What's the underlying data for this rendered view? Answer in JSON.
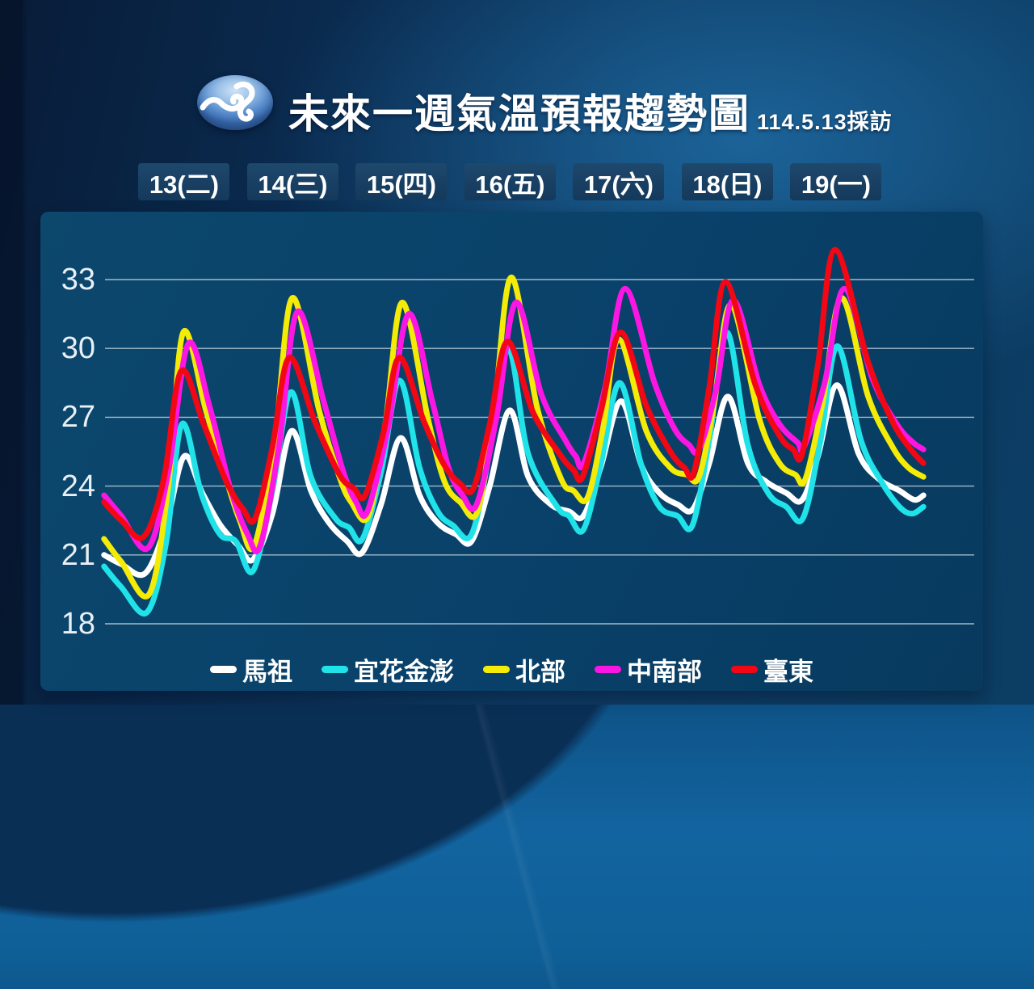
{
  "header": {
    "title": "未來一週氣溫預報趨勢圖",
    "subtitle": "114.5.13採訪",
    "logo": "cwa-wave-logo"
  },
  "chart_data": {
    "type": "line",
    "title": "未來一週氣溫預報趨勢圖",
    "x_axis": {
      "days": [
        "13(二)",
        "14(三)",
        "15(四)",
        "16(五)",
        "17(六)",
        "18(日)",
        "19(一)"
      ],
      "x_unit": "hours from 00:00 of day 13"
    },
    "y_axis": {
      "ticks": [
        33,
        30,
        27,
        24,
        21,
        18
      ],
      "unit": "°C",
      "range": [
        15,
        36
      ]
    },
    "grid": true,
    "legend_position": "bottom",
    "series": [
      {
        "name": "馬祖",
        "key": "matsu",
        "color": "#ffffff",
        "points": [
          [
            -3.7,
            21.0
          ],
          [
            0.1,
            20.6
          ],
          [
            5.4,
            20.2
          ],
          [
            10,
            22.3
          ],
          [
            14,
            25.3
          ],
          [
            18,
            23.7
          ],
          [
            22,
            22.3
          ],
          [
            26,
            21.4
          ],
          [
            29.2,
            20.8
          ],
          [
            33.5,
            22.8
          ],
          [
            37.7,
            26.4
          ],
          [
            42,
            23.8
          ],
          [
            46,
            22.4
          ],
          [
            50,
            21.6
          ],
          [
            53.3,
            21.1
          ],
          [
            57.5,
            23.2
          ],
          [
            61.8,
            26.1
          ],
          [
            66,
            23.6
          ],
          [
            70,
            22.4
          ],
          [
            74,
            21.9
          ],
          [
            77.5,
            21.6
          ],
          [
            81.5,
            24.0
          ],
          [
            85.9,
            27.3
          ],
          [
            90,
            24.4
          ],
          [
            95,
            23.2
          ],
          [
            99,
            22.9
          ],
          [
            102.2,
            22.7
          ],
          [
            106,
            24.8
          ],
          [
            110.5,
            27.7
          ],
          [
            115,
            24.9
          ],
          [
            119,
            23.7
          ],
          [
            123,
            23.2
          ],
          [
            126.4,
            23.0
          ],
          [
            130,
            25.0
          ],
          [
            134.1,
            27.9
          ],
          [
            138.5,
            25.0
          ],
          [
            142.5,
            24.2
          ],
          [
            147,
            23.7
          ],
          [
            150.5,
            23.4
          ],
          [
            154,
            25.3
          ],
          [
            158.2,
            28.4
          ],
          [
            163,
            25.4
          ],
          [
            167.5,
            24.3
          ],
          [
            172,
            23.8
          ],
          [
            175.3,
            23.4
          ],
          [
            177.3,
            23.6
          ]
        ]
      },
      {
        "name": "宜花金澎",
        "key": "yilan-hualien-kinmen-penghu",
        "color": "#1fe3e9",
        "points": [
          [
            -3.7,
            20.5
          ],
          [
            0.1,
            19.6
          ],
          [
            5.8,
            18.5
          ],
          [
            10,
            21.5
          ],
          [
            13.5,
            26.7
          ],
          [
            17.9,
            23.6
          ],
          [
            21.9,
            21.9
          ],
          [
            25.4,
            21.6
          ],
          [
            29.2,
            20.3
          ],
          [
            33.5,
            23.8
          ],
          [
            37.6,
            28.1
          ],
          [
            42,
            24.4
          ],
          [
            47.4,
            22.6
          ],
          [
            50.4,
            22.2
          ],
          [
            53.4,
            21.7
          ],
          [
            57.5,
            24.6
          ],
          [
            61.6,
            28.6
          ],
          [
            66,
            24.8
          ],
          [
            70,
            22.9
          ],
          [
            73.3,
            22.3
          ],
          [
            77.5,
            21.9
          ],
          [
            81.5,
            25.5
          ],
          [
            85.6,
            30.0
          ],
          [
            90,
            25.4
          ],
          [
            96.4,
            23.1
          ],
          [
            99,
            22.7
          ],
          [
            102.2,
            22.1
          ],
          [
            106,
            24.9
          ],
          [
            110.2,
            28.5
          ],
          [
            115,
            24.9
          ],
          [
            119,
            23.1
          ],
          [
            123,
            22.7
          ],
          [
            126.3,
            22.3
          ],
          [
            130,
            26.0
          ],
          [
            133.9,
            30.7
          ],
          [
            138.5,
            25.8
          ],
          [
            143,
            23.7
          ],
          [
            147,
            23.1
          ],
          [
            150.7,
            22.6
          ],
          [
            154.5,
            25.9
          ],
          [
            158.3,
            30.1
          ],
          [
            163.5,
            26.0
          ],
          [
            168,
            24.2
          ],
          [
            172,
            23.1
          ],
          [
            174.8,
            22.8
          ],
          [
            177.3,
            23.1
          ]
        ]
      },
      {
        "name": "北部",
        "key": "north",
        "color": "#f4eb06",
        "points": [
          [
            -3.7,
            21.7
          ],
          [
            0.1,
            20.7
          ],
          [
            6.3,
            19.3
          ],
          [
            10.5,
            24.0
          ],
          [
            13.8,
            30.7
          ],
          [
            18.8,
            27.3
          ],
          [
            23.3,
            24.3
          ],
          [
            26.3,
            22.5
          ],
          [
            29.5,
            21.4
          ],
          [
            34,
            26.0
          ],
          [
            37.9,
            32.2
          ],
          [
            43.8,
            27.3
          ],
          [
            48.3,
            24.4
          ],
          [
            50.9,
            23.3
          ],
          [
            54.7,
            22.7
          ],
          [
            58.5,
            26.8
          ],
          [
            62.2,
            32.0
          ],
          [
            67.9,
            26.9
          ],
          [
            71.5,
            24.2
          ],
          [
            75,
            23.3
          ],
          [
            78.8,
            22.9
          ],
          [
            82.5,
            27.4
          ],
          [
            86.3,
            33.1
          ],
          [
            92,
            27.4
          ],
          [
            97.3,
            24.3
          ],
          [
            100,
            23.8
          ],
          [
            103.1,
            23.5
          ],
          [
            106.5,
            26.5
          ],
          [
            110,
            30.4
          ],
          [
            116.1,
            26.4
          ],
          [
            121.4,
            24.8
          ],
          [
            125,
            24.5
          ],
          [
            127.7,
            24.4
          ],
          [
            131,
            27.5
          ],
          [
            134.8,
            31.9
          ],
          [
            141.1,
            26.9
          ],
          [
            145.5,
            25.0
          ],
          [
            149,
            24.5
          ],
          [
            151.2,
            24.3
          ],
          [
            155,
            27.6
          ],
          [
            159.2,
            32.2
          ],
          [
            165.1,
            27.9
          ],
          [
            170.5,
            25.7
          ],
          [
            174,
            24.8
          ],
          [
            177.3,
            24.4
          ]
        ]
      },
      {
        "name": "中南部",
        "key": "central-south",
        "color": "#fb16e3",
        "points": [
          [
            -3.7,
            23.6
          ],
          [
            0.1,
            22.7
          ],
          [
            6,
            21.3
          ],
          [
            10.5,
            24.6
          ],
          [
            14.9,
            30.2
          ],
          [
            19.7,
            27.4
          ],
          [
            24.2,
            23.9
          ],
          [
            28,
            21.9
          ],
          [
            30.8,
            21.4
          ],
          [
            35,
            25.8
          ],
          [
            39,
            31.6
          ],
          [
            44.8,
            27.7
          ],
          [
            49.2,
            24.6
          ],
          [
            52,
            23.3
          ],
          [
            54.5,
            22.9
          ],
          [
            59,
            26.5
          ],
          [
            63.6,
            31.5
          ],
          [
            68.8,
            27.7
          ],
          [
            72.4,
            24.8
          ],
          [
            75.5,
            23.6
          ],
          [
            78.6,
            23.2
          ],
          [
            83,
            27.0
          ],
          [
            87.3,
            32.0
          ],
          [
            92.9,
            28.0
          ],
          [
            98.2,
            26.0
          ],
          [
            100.5,
            25.3
          ],
          [
            102.3,
            25.0
          ],
          [
            107,
            28.3
          ],
          [
            111.4,
            32.6
          ],
          [
            117.9,
            28.5
          ],
          [
            122.3,
            26.5
          ],
          [
            125.5,
            25.8
          ],
          [
            127.7,
            25.6
          ],
          [
            131.5,
            28.2
          ],
          [
            135.3,
            32.1
          ],
          [
            141.1,
            28.4
          ],
          [
            145.5,
            26.7
          ],
          [
            149.5,
            25.9
          ],
          [
            150.9,
            25.7
          ],
          [
            155.5,
            28.5
          ],
          [
            159.8,
            32.6
          ],
          [
            166,
            28.7
          ],
          [
            171.4,
            26.7
          ],
          [
            175,
            25.9
          ],
          [
            177.3,
            25.6
          ]
        ]
      },
      {
        "name": "臺東",
        "key": "taitung",
        "color": "#f20714",
        "points": [
          [
            -3.7,
            23.3
          ],
          [
            0.1,
            22.5
          ],
          [
            5.1,
            21.8
          ],
          [
            9.5,
            24.3
          ],
          [
            13.3,
            29.0
          ],
          [
            18.3,
            26.7
          ],
          [
            23.3,
            24.2
          ],
          [
            27,
            23.0
          ],
          [
            29.7,
            22.6
          ],
          [
            33.5,
            25.7
          ],
          [
            37.2,
            29.6
          ],
          [
            42.9,
            26.8
          ],
          [
            48.3,
            24.5
          ],
          [
            51.5,
            23.9
          ],
          [
            54,
            23.6
          ],
          [
            58,
            26.3
          ],
          [
            61.5,
            29.6
          ],
          [
            67,
            26.8
          ],
          [
            71.5,
            24.9
          ],
          [
            75,
            24.1
          ],
          [
            77.9,
            23.9
          ],
          [
            81.5,
            26.7
          ],
          [
            85.4,
            30.3
          ],
          [
            91.1,
            27.2
          ],
          [
            97.3,
            25.3
          ],
          [
            100,
            24.7
          ],
          [
            102,
            24.4
          ],
          [
            106,
            27.2
          ],
          [
            110.4,
            30.7
          ],
          [
            116.1,
            27.5
          ],
          [
            121.4,
            25.5
          ],
          [
            124.5,
            24.8
          ],
          [
            126.6,
            24.6
          ],
          [
            130,
            28.3
          ],
          [
            133.6,
            32.9
          ],
          [
            140.2,
            28.4
          ],
          [
            145.5,
            26.2
          ],
          [
            148.5,
            25.6
          ],
          [
            150.5,
            25.4
          ],
          [
            154,
            29.3
          ],
          [
            157.8,
            34.3
          ],
          [
            165.1,
            29.4
          ],
          [
            170.5,
            26.8
          ],
          [
            174.5,
            25.6
          ],
          [
            177.3,
            25.0
          ]
        ]
      }
    ]
  }
}
